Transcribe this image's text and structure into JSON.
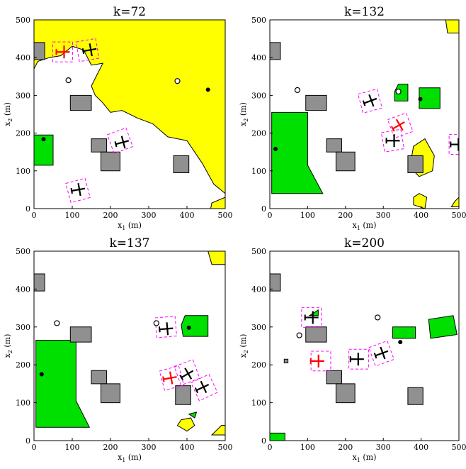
{
  "colors": {
    "obstacle": "#909090",
    "goal": "#00e000",
    "threat": "#ffff00",
    "agent": "#000000",
    "agent_highlight": "#ff0000",
    "safety_box": "#ff00ff"
  },
  "chart_data": [
    {
      "type": "scatter",
      "title": "k=72",
      "xlabel": "x1 (m)",
      "ylabel": "x2 (m)",
      "xlim": [
        0,
        500
      ],
      "ylim": [
        0,
        500
      ],
      "xticks": [
        0,
        100,
        200,
        300,
        400,
        500
      ],
      "yticks": [
        0,
        100,
        200,
        300,
        400,
        500
      ],
      "grid": false,
      "obstacles": [
        [
          [
            0,
            395
          ],
          [
            28,
            395
          ],
          [
            28,
            440
          ],
          [
            0,
            440
          ]
        ],
        [
          [
            95,
            260
          ],
          [
            150,
            260
          ],
          [
            150,
            300
          ],
          [
            95,
            300
          ]
        ],
        [
          [
            150,
            150
          ],
          [
            190,
            150
          ],
          [
            190,
            185
          ],
          [
            150,
            185
          ]
        ],
        [
          [
            175,
            100
          ],
          [
            225,
            100
          ],
          [
            225,
            150
          ],
          [
            175,
            150
          ]
        ],
        [
          [
            365,
            95
          ],
          [
            405,
            95
          ],
          [
            405,
            140
          ],
          [
            365,
            140
          ]
        ]
      ],
      "goals": [
        [
          [
            0,
            115
          ],
          [
            50,
            115
          ],
          [
            50,
            195
          ],
          [
            0,
            195
          ]
        ]
      ],
      "threats": [
        [
          [
            0,
            500
          ],
          [
            500,
            500
          ],
          [
            500,
            40
          ],
          [
            470,
            65
          ],
          [
            440,
            120
          ],
          [
            400,
            180
          ],
          [
            350,
            190
          ],
          [
            310,
            225
          ],
          [
            270,
            240
          ],
          [
            230,
            260
          ],
          [
            200,
            255
          ],
          [
            180,
            280
          ],
          [
            160,
            300
          ],
          [
            150,
            325
          ],
          [
            165,
            355
          ],
          [
            180,
            385
          ],
          [
            150,
            380
          ],
          [
            130,
            420
          ],
          [
            100,
            430
          ],
          [
            70,
            405
          ],
          [
            40,
            400
          ],
          [
            10,
            390
          ],
          [
            0,
            370
          ]
        ],
        [
          [
            462,
            0
          ],
          [
            500,
            0
          ],
          [
            500,
            30
          ],
          [
            465,
            15
          ]
        ]
      ],
      "agents": [
        {
          "x": 75,
          "y": 415,
          "heading": 0,
          "highlight": true
        },
        {
          "x": 145,
          "y": 420,
          "heading": 10,
          "highlight": false
        },
        {
          "x": 230,
          "y": 175,
          "heading": 15,
          "highlight": false
        },
        {
          "x": 115,
          "y": 50,
          "heading": 10,
          "highlight": false
        }
      ],
      "safety_boxes": [
        {
          "x": 75,
          "y": 415,
          "heading": 0
        },
        {
          "x": 140,
          "y": 420,
          "heading": 10
        },
        {
          "x": 225,
          "y": 180,
          "heading": 20
        },
        {
          "x": 115,
          "y": 48,
          "heading": 15
        }
      ],
      "open_markers": [
        [
          90,
          340
        ],
        [
          375,
          338
        ]
      ],
      "filled_markers": [
        [
          25,
          184
        ],
        [
          455,
          315
        ]
      ]
    },
    {
      "type": "scatter",
      "title": "k=132",
      "xlabel": "x1 (m)",
      "ylabel": "x2 (m)",
      "xlim": [
        0,
        500
      ],
      "ylim": [
        0,
        500
      ],
      "xticks": [
        0,
        100,
        200,
        300,
        400,
        500
      ],
      "yticks": [
        0,
        100,
        200,
        300,
        400,
        500
      ],
      "grid": false,
      "obstacles": [
        [
          [
            0,
            395
          ],
          [
            28,
            395
          ],
          [
            28,
            440
          ],
          [
            0,
            440
          ]
        ],
        [
          [
            95,
            260
          ],
          [
            150,
            260
          ],
          [
            150,
            300
          ],
          [
            95,
            300
          ]
        ],
        [
          [
            150,
            150
          ],
          [
            190,
            150
          ],
          [
            190,
            185
          ],
          [
            150,
            185
          ]
        ],
        [
          [
            175,
            100
          ],
          [
            225,
            100
          ],
          [
            225,
            150
          ],
          [
            175,
            150
          ]
        ],
        [
          [
            365,
            95
          ],
          [
            405,
            95
          ],
          [
            405,
            140
          ],
          [
            365,
            140
          ]
        ]
      ],
      "goals": [
        [
          [
            5,
            40
          ],
          [
            140,
            40
          ],
          [
            100,
            115
          ],
          [
            100,
            255
          ],
          [
            5,
            255
          ]
        ],
        [
          [
            330,
            285
          ],
          [
            365,
            285
          ],
          [
            365,
            330
          ],
          [
            340,
            330
          ],
          [
            330,
            310
          ]
        ],
        [
          [
            395,
            265
          ],
          [
            450,
            265
          ],
          [
            450,
            320
          ],
          [
            395,
            320
          ]
        ]
      ],
      "threats": [
        [
          [
            465,
            500
          ],
          [
            500,
            500
          ],
          [
            500,
            465
          ],
          [
            470,
            465
          ]
        ],
        [
          [
            370,
            110
          ],
          [
            395,
            85
          ],
          [
            430,
            100
          ],
          [
            435,
            140
          ],
          [
            410,
            185
          ],
          [
            380,
            165
          ]
        ],
        [
          [
            380,
            10
          ],
          [
            410,
            0
          ],
          [
            415,
            30
          ],
          [
            395,
            40
          ],
          [
            380,
            30
          ]
        ],
        [
          [
            480,
            5
          ],
          [
            500,
            5
          ],
          [
            500,
            30
          ],
          [
            490,
            20
          ]
        ]
      ],
      "agents": [
        {
          "x": 265,
          "y": 285,
          "heading": 20,
          "highlight": false
        },
        {
          "x": 340,
          "y": 220,
          "heading": 30,
          "highlight": true
        },
        {
          "x": 325,
          "y": 180,
          "heading": 0,
          "highlight": false
        },
        {
          "x": 495,
          "y": 170,
          "heading": 0,
          "highlight": false
        }
      ],
      "safety_boxes": [
        {
          "x": 265,
          "y": 285,
          "heading": 15
        },
        {
          "x": 345,
          "y": 220,
          "heading": 20
        },
        {
          "x": 325,
          "y": 180,
          "heading": 10
        },
        {
          "x": 500,
          "y": 170,
          "heading": 0
        }
      ],
      "open_markers": [
        [
          73,
          314
        ],
        [
          340,
          310
        ]
      ],
      "filled_markers": [
        [
          15,
          158
        ],
        [
          398,
          290
        ]
      ]
    },
    {
      "type": "scatter",
      "title": "k=137",
      "xlabel": "x1 (m)",
      "ylabel": "x2 (m)",
      "xlim": [
        0,
        500
      ],
      "ylim": [
        0,
        500
      ],
      "xticks": [
        0,
        100,
        200,
        300,
        400,
        500
      ],
      "yticks": [
        0,
        100,
        200,
        300,
        400,
        500
      ],
      "grid": false,
      "obstacles": [
        [
          [
            0,
            395
          ],
          [
            28,
            395
          ],
          [
            28,
            440
          ],
          [
            0,
            440
          ]
        ],
        [
          [
            95,
            260
          ],
          [
            150,
            260
          ],
          [
            150,
            300
          ],
          [
            95,
            300
          ]
        ],
        [
          [
            150,
            150
          ],
          [
            190,
            150
          ],
          [
            190,
            185
          ],
          [
            150,
            185
          ]
        ],
        [
          [
            175,
            100
          ],
          [
            225,
            100
          ],
          [
            225,
            150
          ],
          [
            175,
            150
          ]
        ],
        [
          [
            370,
            95
          ],
          [
            410,
            95
          ],
          [
            410,
            145
          ],
          [
            370,
            145
          ]
        ]
      ],
      "goals": [
        [
          [
            5,
            35
          ],
          [
            145,
            35
          ],
          [
            110,
            105
          ],
          [
            110,
            265
          ],
          [
            5,
            265
          ]
        ],
        [
          [
            390,
            275
          ],
          [
            455,
            275
          ],
          [
            455,
            330
          ],
          [
            395,
            330
          ],
          [
            385,
            305
          ]
        ],
        [
          [
            405,
            70
          ],
          [
            420,
            60
          ],
          [
            425,
            75
          ]
        ]
      ],
      "threats": [
        [
          [
            455,
            500
          ],
          [
            500,
            500
          ],
          [
            500,
            465
          ],
          [
            465,
            465
          ]
        ],
        [
          [
            375,
            40
          ],
          [
            400,
            25
          ],
          [
            420,
            40
          ],
          [
            410,
            60
          ],
          [
            385,
            55
          ]
        ],
        [
          [
            465,
            15
          ],
          [
            490,
            40
          ],
          [
            500,
            40
          ],
          [
            500,
            15
          ]
        ]
      ],
      "agents": [
        {
          "x": 345,
          "y": 295,
          "heading": 5,
          "highlight": false
        },
        {
          "x": 355,
          "y": 165,
          "heading": 10,
          "highlight": true
        },
        {
          "x": 400,
          "y": 175,
          "heading": 30,
          "highlight": false
        },
        {
          "x": 440,
          "y": 140,
          "heading": 25,
          "highlight": false
        }
      ],
      "safety_boxes": [
        {
          "x": 345,
          "y": 300,
          "heading": 5
        },
        {
          "x": 360,
          "y": 165,
          "heading": 15
        },
        {
          "x": 400,
          "y": 180,
          "heading": 20
        },
        {
          "x": 445,
          "y": 140,
          "heading": 25
        }
      ],
      "open_markers": [
        [
          60,
          310
        ],
        [
          320,
          310
        ]
      ],
      "filled_markers": [
        [
          20,
          175
        ],
        [
          405,
          298
        ]
      ]
    },
    {
      "type": "scatter",
      "title": "k=200",
      "xlabel": "x1 (m)",
      "ylabel": "x2 (m)",
      "xlim": [
        0,
        500
      ],
      "ylim": [
        0,
        500
      ],
      "xticks": [
        0,
        100,
        200,
        300,
        400,
        500
      ],
      "yticks": [
        0,
        100,
        200,
        300,
        400,
        500
      ],
      "grid": false,
      "obstacles": [
        [
          [
            0,
            395
          ],
          [
            28,
            395
          ],
          [
            28,
            440
          ],
          [
            0,
            440
          ]
        ],
        [
          [
            95,
            260
          ],
          [
            150,
            260
          ],
          [
            150,
            300
          ],
          [
            95,
            300
          ]
        ],
        [
          [
            150,
            150
          ],
          [
            190,
            150
          ],
          [
            190,
            185
          ],
          [
            150,
            185
          ]
        ],
        [
          [
            175,
            100
          ],
          [
            225,
            100
          ],
          [
            225,
            150
          ],
          [
            175,
            150
          ]
        ],
        [
          [
            365,
            95
          ],
          [
            405,
            95
          ],
          [
            405,
            140
          ],
          [
            365,
            140
          ]
        ],
        [
          [
            38,
            205
          ],
          [
            48,
            205
          ],
          [
            48,
            215
          ],
          [
            38,
            215
          ]
        ]
      ],
      "goals": [
        [
          [
            0,
            0
          ],
          [
            40,
            0
          ],
          [
            40,
            20
          ],
          [
            0,
            20
          ]
        ],
        [
          [
            325,
            270
          ],
          [
            385,
            270
          ],
          [
            385,
            300
          ],
          [
            325,
            300
          ]
        ],
        [
          [
            425,
            270
          ],
          [
            495,
            280
          ],
          [
            485,
            330
          ],
          [
            420,
            320
          ]
        ],
        [
          [
            105,
            330
          ],
          [
            128,
            330
          ],
          [
            128,
            345
          ]
        ]
      ],
      "threats": [],
      "agents": [
        {
          "x": 110,
          "y": 325,
          "heading": 0,
          "highlight": false
        },
        {
          "x": 125,
          "y": 210,
          "heading": 0,
          "highlight": true
        },
        {
          "x": 230,
          "y": 215,
          "heading": 0,
          "highlight": false
        },
        {
          "x": 295,
          "y": 230,
          "heading": 20,
          "highlight": false
        }
      ],
      "safety_boxes": [
        {
          "x": 110,
          "y": 325,
          "heading": 0
        },
        {
          "x": 135,
          "y": 210,
          "heading": 0
        },
        {
          "x": 235,
          "y": 215,
          "heading": 0
        },
        {
          "x": 295,
          "y": 230,
          "heading": 20
        }
      ],
      "open_markers": [
        [
          78,
          278
        ],
        [
          285,
          325
        ]
      ],
      "filled_markers": [
        [
          345,
          260
        ]
      ]
    }
  ]
}
